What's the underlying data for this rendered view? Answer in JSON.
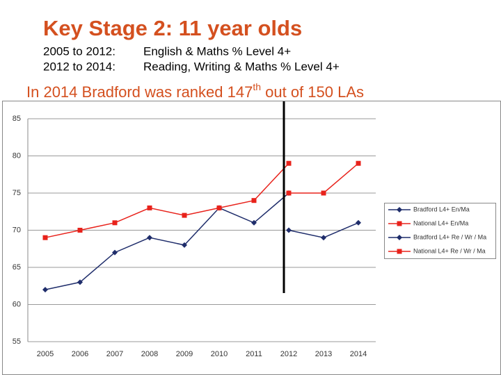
{
  "header": {
    "title": "Key Stage 2:  11 year olds",
    "lines": [
      {
        "period": "2005 to 2012:",
        "measure": "English & Maths % Level 4+"
      },
      {
        "period": "2012 to 2014:",
        "measure": "Reading, Writing & Maths % Level 4+"
      }
    ],
    "headline": {
      "before": "In 2014 Bradford was ranked 147",
      "sup": "th",
      "after": " out of 150 LAs"
    }
  },
  "chart_data": {
    "type": "line",
    "categories": [
      "2005",
      "2006",
      "2007",
      "2008",
      "2009",
      "2010",
      "2011",
      "2012",
      "2013",
      "2014"
    ],
    "series": [
      {
        "name": "Bradford L4+ En/Ma",
        "color": "#1f2d6b",
        "marker": "diamond",
        "values": [
          62,
          63,
          67,
          69,
          68,
          73,
          71,
          75,
          null,
          null
        ]
      },
      {
        "name": "National L4+ En/Ma",
        "color": "#e8221b",
        "marker": "square",
        "values": [
          69,
          70,
          71,
          73,
          72,
          73,
          74,
          79,
          null,
          null
        ]
      },
      {
        "name": "Bradford L4+ Re / Wr / Ma",
        "color": "#1f2d6b",
        "marker": "diamond",
        "values": [
          null,
          null,
          null,
          null,
          null,
          null,
          null,
          70,
          69,
          71
        ]
      },
      {
        "name": "National L4+ Re / Wr / Ma",
        "color": "#e8221b",
        "marker": "square",
        "values": [
          null,
          null,
          null,
          null,
          null,
          null,
          null,
          75,
          75,
          79
        ]
      }
    ],
    "ylim": [
      55,
      85
    ],
    "yticks": [
      55,
      60,
      65,
      70,
      75,
      80,
      85
    ],
    "grid": true,
    "legend": "right"
  }
}
